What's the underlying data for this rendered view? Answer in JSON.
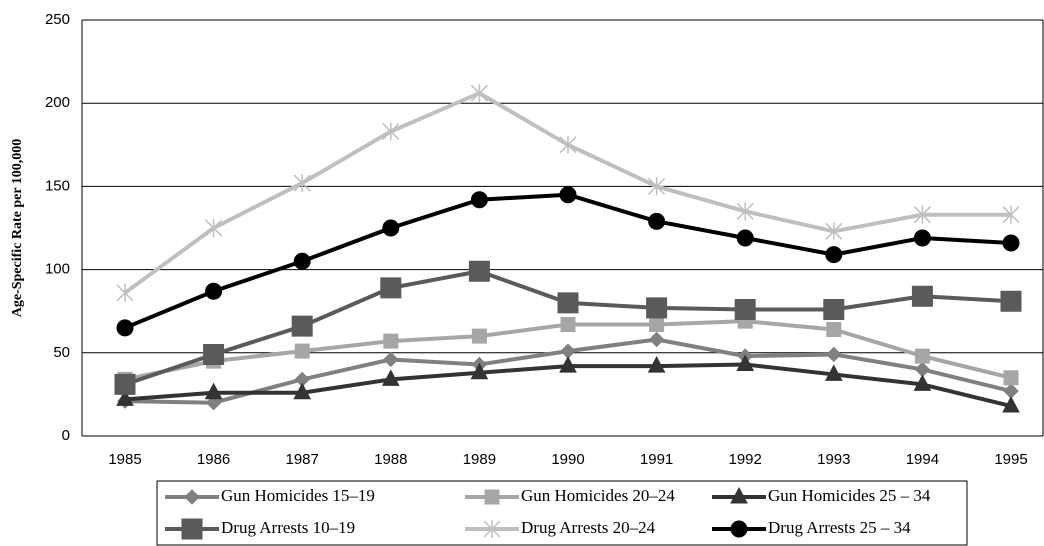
{
  "chart_data": {
    "type": "line",
    "y_label": "Age-Specific Rate per 100,000",
    "categories": [
      "1985",
      "1986",
      "1987",
      "1988",
      "1989",
      "1990",
      "1991",
      "1992",
      "1993",
      "1994",
      "1995"
    ],
    "ylim": [
      0,
      250
    ],
    "yticks": [
      0,
      50,
      100,
      150,
      200,
      250
    ],
    "grid": true,
    "legend": "bottom",
    "series": [
      {
        "name": "Gun Homicides 15–19",
        "color": "#808080",
        "marker": "diamond",
        "values": [
          21,
          20,
          34,
          46,
          43,
          51,
          58,
          48,
          49,
          40,
          27
        ]
      },
      {
        "name": "Gun Homicides 20–24",
        "color": "#a6a6a6",
        "marker": "square",
        "values": [
          34,
          45,
          51,
          57,
          60,
          67,
          67,
          69,
          64,
          48,
          35
        ]
      },
      {
        "name": "Gun Homicides 25 – 34",
        "color": "#333333",
        "marker": "triangle",
        "values": [
          22,
          26,
          26,
          34,
          38,
          42,
          42,
          43,
          37,
          31,
          18
        ]
      },
      {
        "name": "Drug Arrests 10–19",
        "color": "#5a5a5a",
        "marker": "bigsquare",
        "values": [
          31,
          49,
          66,
          89,
          99,
          80,
          77,
          76,
          76,
          84,
          81
        ]
      },
      {
        "name": "Drug Arrests 20–24",
        "color": "#bfbfbf",
        "marker": "star",
        "values": [
          86,
          125,
          152,
          183,
          206,
          175,
          150,
          135,
          123,
          133,
          133
        ]
      },
      {
        "name": "Drug Arrests 25 – 34",
        "color": "#000000",
        "marker": "circle",
        "values": [
          65,
          87,
          105,
          125,
          142,
          145,
          129,
          119,
          109,
          119,
          116
        ]
      }
    ]
  }
}
